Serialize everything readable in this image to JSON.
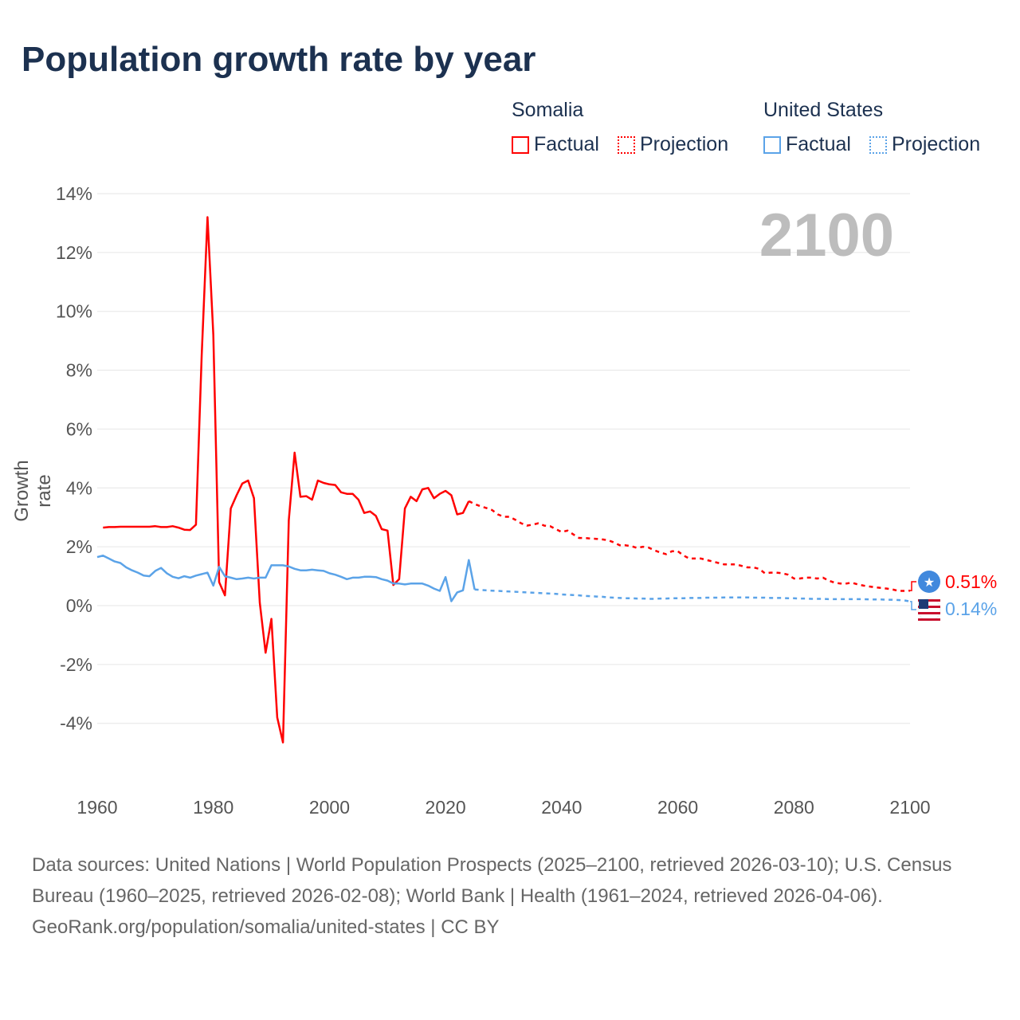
{
  "title": "Population growth rate by year",
  "current_year": "2100",
  "legend": {
    "somalia": {
      "label": "Somalia",
      "factual": "Factual",
      "projection": "Projection",
      "color": "#ff0000"
    },
    "us": {
      "label": "United States",
      "factual": "Factual",
      "projection": "Projection",
      "color": "#5ba3e8"
    }
  },
  "end_labels": {
    "somalia": "0.51%",
    "us": "0.14%"
  },
  "footer": {
    "sources": "Data sources: United Nations | World Population Prospects (2025–2100, retrieved 2026-03-10); U.S. Census Bureau (1960–2025, retrieved 2026-02-08); World Bank | Health (1961–2024, retrieved 2026-04-06).",
    "credit": "GeoRank.org/population/somalia/united-states | CC BY"
  },
  "chart_data": {
    "type": "line",
    "title": "Population growth rate by year",
    "xlabel": "",
    "ylabel": "Growth rate",
    "xlim": [
      1960,
      2100
    ],
    "ylim": [
      -5,
      14
    ],
    "xticks": [
      "1960",
      "1980",
      "2000",
      "2020",
      "2040",
      "2060",
      "2080",
      "2100"
    ],
    "yticks": [
      "14%",
      "12%",
      "10%",
      "8%",
      "6%",
      "4%",
      "2%",
      "0%",
      "-2%",
      "-4%"
    ],
    "ytick_values": [
      14,
      12,
      10,
      8,
      6,
      4,
      2,
      0,
      -2,
      -4
    ],
    "grid": true,
    "series": [
      {
        "name": "Somalia Factual",
        "start_year": 1961,
        "color": "#ff0000",
        "dashed": false,
        "values": [
          2.65,
          2.67,
          2.67,
          2.68,
          2.68,
          2.68,
          2.68,
          2.68,
          2.68,
          2.7,
          2.67,
          2.67,
          2.7,
          2.65,
          2.58,
          2.57,
          2.75,
          8.5,
          13.2,
          9.2,
          0.8,
          0.35,
          3.3,
          3.75,
          4.15,
          4.25,
          3.65,
          0.1,
          -1.6,
          -0.45,
          -3.8,
          -4.65,
          2.9,
          5.2,
          3.7,
          3.72,
          3.6,
          4.25,
          4.17,
          4.12,
          4.1,
          3.85,
          3.8,
          3.8,
          3.6,
          3.15,
          3.2,
          3.05,
          2.6,
          2.55,
          0.7,
          0.9,
          3.3,
          3.7,
          3.55,
          3.95,
          4.0,
          3.65,
          3.8,
          3.9,
          3.75,
          3.1,
          3.15,
          3.55
        ]
      },
      {
        "name": "Somalia Projection",
        "start_year": 2024,
        "color": "#ff0000",
        "dashed": true,
        "values": [
          3.55,
          3.45,
          3.38,
          3.32,
          3.25,
          3.1,
          3.02,
          3.02,
          2.92,
          2.8,
          2.72,
          2.75,
          2.8,
          2.72,
          2.7,
          2.6,
          2.5,
          2.55,
          2.42,
          2.3,
          2.3,
          2.28,
          2.27,
          2.25,
          2.22,
          2.15,
          2.05,
          2.05,
          2.02,
          1.96,
          2.0,
          1.97,
          1.88,
          1.8,
          1.75,
          1.85,
          1.85,
          1.7,
          1.6,
          1.6,
          1.6,
          1.55,
          1.5,
          1.45,
          1.4,
          1.4,
          1.4,
          1.35,
          1.3,
          1.3,
          1.25,
          1.1,
          1.12,
          1.12,
          1.1,
          1.05,
          0.92,
          0.92,
          0.95,
          0.95,
          0.92,
          0.95,
          0.85,
          0.78,
          0.75,
          0.75,
          0.78,
          0.72,
          0.68,
          0.65,
          0.62,
          0.6,
          0.58,
          0.55,
          0.5,
          0.5,
          0.51
        ]
      },
      {
        "name": "United States Factual",
        "start_year": 1960,
        "color": "#5ba3e8",
        "dashed": false,
        "values": [
          1.65,
          1.7,
          1.6,
          1.5,
          1.45,
          1.3,
          1.2,
          1.12,
          1.02,
          1.0,
          1.18,
          1.28,
          1.1,
          0.98,
          0.93,
          1.0,
          0.95,
          1.02,
          1.07,
          1.12,
          0.68,
          1.32,
          1.0,
          0.95,
          0.9,
          0.92,
          0.95,
          0.92,
          0.95,
          0.95,
          1.37,
          1.37,
          1.37,
          1.33,
          1.25,
          1.2,
          1.2,
          1.22,
          1.2,
          1.18,
          1.1,
          1.05,
          0.98,
          0.9,
          0.95,
          0.95,
          0.98,
          0.98,
          0.97,
          0.9,
          0.85,
          0.75,
          0.75,
          0.72,
          0.75,
          0.75,
          0.75,
          0.68,
          0.58,
          0.5,
          0.97,
          0.15,
          0.45,
          0.52,
          1.55,
          0.55
        ]
      },
      {
        "name": "United States Projection",
        "start_year": 2025,
        "color": "#5ba3e8",
        "dashed": true,
        "values": [
          0.55,
          0.53,
          0.52,
          0.51,
          0.5,
          0.49,
          0.48,
          0.47,
          0.46,
          0.45,
          0.44,
          0.43,
          0.42,
          0.41,
          0.4,
          0.38,
          0.37,
          0.36,
          0.35,
          0.33,
          0.32,
          0.31,
          0.3,
          0.28,
          0.27,
          0.26,
          0.25,
          0.25,
          0.24,
          0.24,
          0.23,
          0.23,
          0.24,
          0.24,
          0.25,
          0.25,
          0.25,
          0.26,
          0.26,
          0.26,
          0.27,
          0.27,
          0.27,
          0.28,
          0.28,
          0.28,
          0.28,
          0.28,
          0.27,
          0.27,
          0.27,
          0.26,
          0.26,
          0.26,
          0.25,
          0.25,
          0.24,
          0.24,
          0.23,
          0.23,
          0.23,
          0.22,
          0.22,
          0.22,
          0.22,
          0.22,
          0.22,
          0.22,
          0.21,
          0.21,
          0.21,
          0.2,
          0.2,
          0.19,
          0.18,
          0.14
        ]
      }
    ]
  }
}
